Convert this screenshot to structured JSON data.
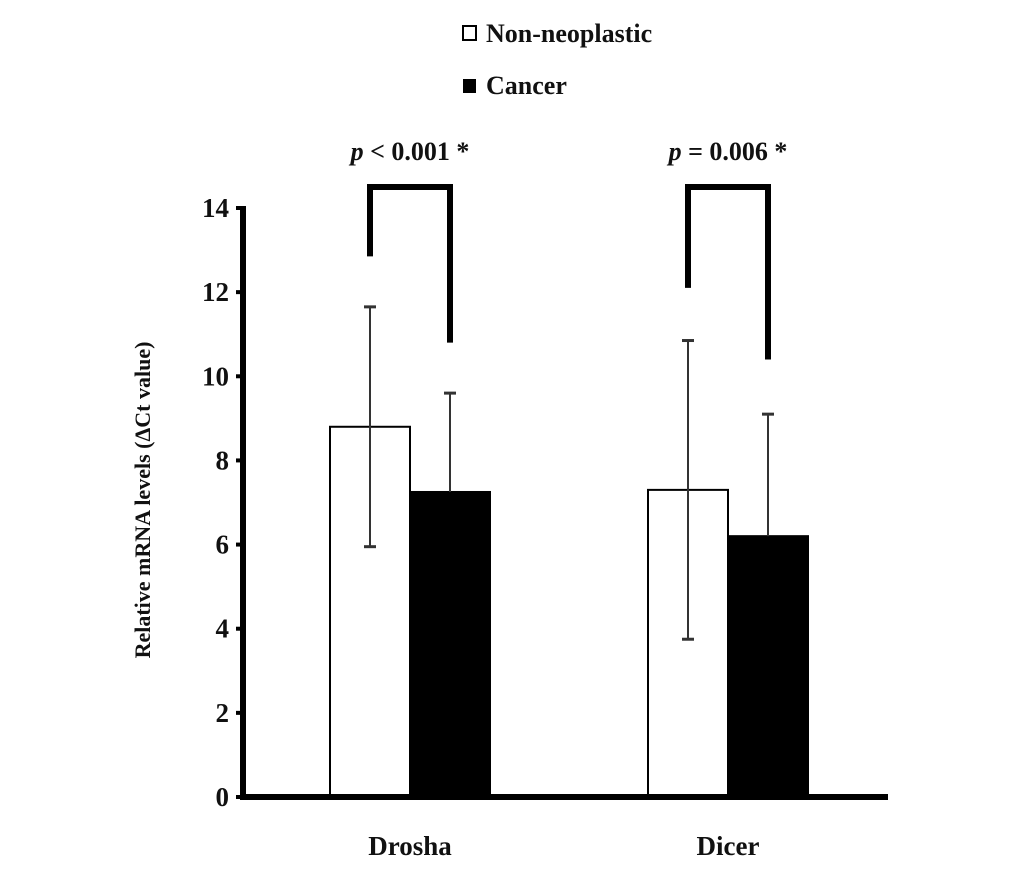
{
  "chart_data": {
    "type": "bar",
    "categories": [
      "Drosha",
      "Dicer"
    ],
    "series": [
      {
        "name": "Non-neoplastic",
        "values": [
          8.8,
          7.3
        ],
        "error_upper": [
          11.65,
          10.85
        ],
        "error_lower": [
          5.95,
          3.75
        ],
        "fill": "#ffffff"
      },
      {
        "name": "Cancer",
        "values": [
          7.25,
          6.2
        ],
        "error_upper": [
          9.6,
          9.1
        ],
        "fill": "#000000"
      }
    ],
    "ylabel": "Relative mRNA levels (ΔCt value)",
    "xlabel": "",
    "ylim": [
      0,
      14
    ],
    "yticks": [
      "0",
      "2",
      "4",
      "6",
      "8",
      "10",
      "12",
      "14"
    ],
    "grid": false,
    "legend_position": "top-center",
    "annotations": [
      {
        "category": "Drosha",
        "text_p": "p",
        "text_rest": " < 0.001 *"
      },
      {
        "category": "Dicer",
        "text_p": "p",
        "text_rest": " = 0.006 *"
      }
    ]
  }
}
